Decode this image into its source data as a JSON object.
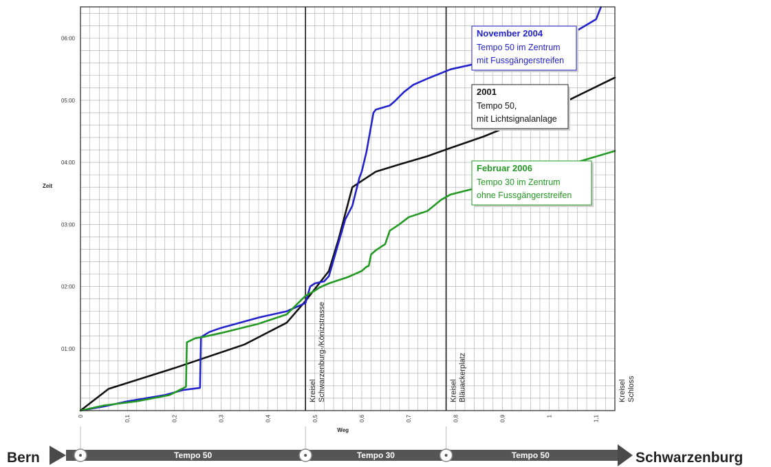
{
  "chart_data": {
    "type": "line",
    "title": "",
    "xlabel": "Weg",
    "ylabel": "Zeit",
    "xlim": [
      0,
      1.14
    ],
    "ylim": [
      0,
      23420
    ],
    "x_ticks": [
      {
        "value": 0,
        "label": "0"
      },
      {
        "value": 0.1,
        "label": "0,1"
      },
      {
        "value": 0.2,
        "label": "0,2"
      },
      {
        "value": 0.3,
        "label": "0,3"
      },
      {
        "value": 0.4,
        "label": "0,4"
      },
      {
        "value": 0.5,
        "label": "0,5"
      },
      {
        "value": 0.6,
        "label": "0,6"
      },
      {
        "value": 0.7,
        "label": "0,7"
      },
      {
        "value": 0.8,
        "label": "0,8"
      },
      {
        "value": 0.9,
        "label": "0,9"
      },
      {
        "value": 1.0,
        "label": "1"
      },
      {
        "value": 1.1,
        "label": "1,1"
      }
    ],
    "y_ticks": [
      {
        "value": 3600,
        "label": "01:00"
      },
      {
        "value": 7200,
        "label": "02:00"
      },
      {
        "value": 10800,
        "label": "03:00"
      },
      {
        "value": 14400,
        "label": "04:00"
      },
      {
        "value": 18000,
        "label": "05:00"
      },
      {
        "value": 21600,
        "label": "06:00"
      }
    ],
    "grid": true,
    "series": [
      {
        "key": "s2001",
        "color": "#111111",
        "x": [
          0,
          0.06,
          0.2,
          0.35,
          0.44,
          0.48,
          0.53,
          0.55,
          0.58,
          0.6,
          0.63,
          0.68,
          0.74,
          0.79,
          0.86,
          1.0,
          1.14
        ],
        "y": [
          0,
          1260,
          2460,
          3840,
          5100,
          6360,
          8100,
          9900,
          12960,
          13320,
          13860,
          14280,
          14760,
          15240,
          15900,
          17460,
          19320
        ]
      },
      {
        "key": "s2004",
        "color": "#2222cc",
        "x": [
          0,
          0.05,
          0.1,
          0.18,
          0.22,
          0.255,
          0.257,
          0.275,
          0.3,
          0.38,
          0.44,
          0.48,
          0.49,
          0.5,
          0.52,
          0.53,
          0.565,
          0.58,
          0.595,
          0.6,
          0.61,
          0.625,
          0.63,
          0.66,
          0.67,
          0.69,
          0.71,
          0.74,
          0.79,
          0.86,
          0.9,
          1.0,
          1.05,
          1.1,
          1.11
        ],
        "y": [
          0,
          240,
          540,
          900,
          1200,
          1320,
          4260,
          4560,
          4800,
          5400,
          5760,
          6240,
          7200,
          7380,
          7500,
          7800,
          11100,
          11880,
          13500,
          13860,
          15000,
          17280,
          17460,
          17700,
          17940,
          18480,
          18900,
          19260,
          19800,
          20220,
          20700,
          21300,
          21900,
          22700,
          23400
        ]
      },
      {
        "key": "s2006",
        "color": "#229922",
        "x": [
          0,
          0.05,
          0.12,
          0.19,
          0.225,
          0.227,
          0.245,
          0.26,
          0.3,
          0.38,
          0.44,
          0.48,
          0.5,
          0.51,
          0.53,
          0.57,
          0.6,
          0.61,
          0.615,
          0.62,
          0.63,
          0.65,
          0.66,
          0.68,
          0.7,
          0.74,
          0.77,
          0.79,
          0.86,
          0.9,
          1.0,
          1.05,
          1.14
        ],
        "y": [
          0,
          300,
          540,
          900,
          1380,
          3960,
          4200,
          4260,
          4500,
          5040,
          5580,
          6660,
          6960,
          7140,
          7380,
          7740,
          8100,
          8340,
          8400,
          9060,
          9300,
          9660,
          10440,
          10800,
          11220,
          11580,
          12240,
          12540,
          13020,
          13320,
          13920,
          14340,
          15060
        ]
      }
    ],
    "vlines": [
      {
        "x": 0.48,
        "line1": "Kreisel",
        "line2": "Schwarzenburg-/Könizstrasse"
      },
      {
        "x": 0.78,
        "line1": "Kreisel",
        "line2": "Bläuackerplatz"
      },
      {
        "x": 1.14,
        "line1": "Kreisel",
        "line2": "Schloss"
      }
    ],
    "annotations": [
      {
        "key": "a2004",
        "color": "#2222cc",
        "border": "#2222cc",
        "title": "November 2004",
        "lines": [
          "Tempo 50 im Zentrum",
          "mit Fussgängerstreifen"
        ]
      },
      {
        "key": "a2001",
        "color": "#111111",
        "border": "#222222",
        "title": "2001",
        "lines": [
          "Tempo 50,",
          "mit Lichtsignalanlage"
        ]
      },
      {
        "key": "a2006",
        "color": "#229922",
        "border": "#229922",
        "title": "Februar 2006",
        "lines": [
          "Tempo 30 im Zentrum",
          "ohne Fussgängerstreifen"
        ]
      }
    ],
    "route": {
      "start": "Bern",
      "end": "Schwarzenburg",
      "segments": [
        {
          "from": 0,
          "to": 0.48,
          "label": "Tempo 50"
        },
        {
          "from": 0.48,
          "to": 0.78,
          "label": "Tempo 30"
        },
        {
          "from": 0.78,
          "to": 1.14,
          "label": "Tempo 50"
        }
      ]
    }
  }
}
